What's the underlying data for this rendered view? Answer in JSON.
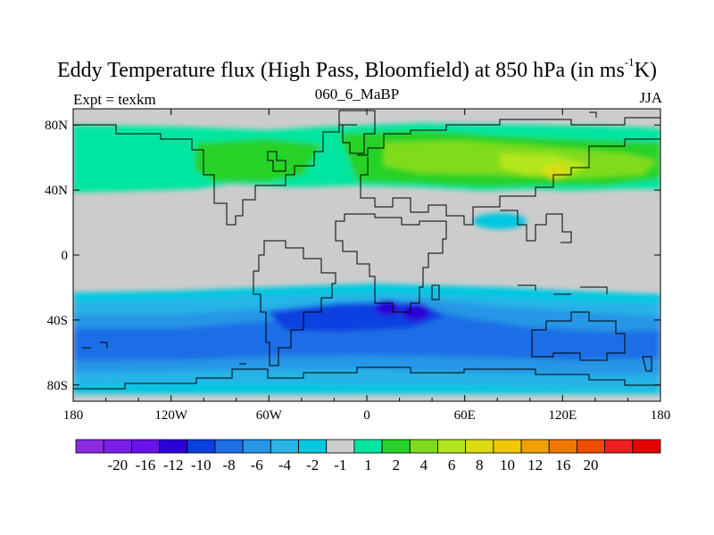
{
  "title": {
    "main": "Eddy Temperature flux (High Pass, Bloomfield) at 850 hPa (in ms",
    "superscript": "-1",
    "suffix": "K)"
  },
  "left_label": "Expt = texkm",
  "center_label": "060_6_MaBP",
  "right_label": "JJA",
  "map": {
    "projection": "cylindrical-equidistant",
    "lon_range": [
      -180,
      180
    ],
    "lat_range": [
      -90,
      90
    ],
    "ocean_missing_color": "#cccccc",
    "x_ticks": [
      "180",
      "120W",
      "60W",
      "0",
      "60E",
      "120E",
      "180"
    ],
    "y_ticks": [
      "80N",
      "40N",
      "0",
      "40S",
      "80S"
    ]
  },
  "colorbar": {
    "colors": [
      "#8a2be2",
      "#7a1fe6",
      "#6a12ea",
      "#2a00d8",
      "#0a40e0",
      "#1e6ee6",
      "#2896e6",
      "#28b4e6",
      "#00c8e0",
      "#cccccc",
      "#00e6a0",
      "#28d228",
      "#7fdc1e",
      "#b4e61e",
      "#dcdc14",
      "#f0c800",
      "#f0a000",
      "#f07800",
      "#f04b00",
      "#f01e1e",
      "#e60000"
    ],
    "labels": [
      "-20",
      "-16",
      "-12",
      "-10",
      "-8",
      "-6",
      "-4",
      "-2",
      "-1",
      "1",
      "2",
      "4",
      "6",
      "8",
      "10",
      "12",
      "16",
      "20"
    ]
  }
}
